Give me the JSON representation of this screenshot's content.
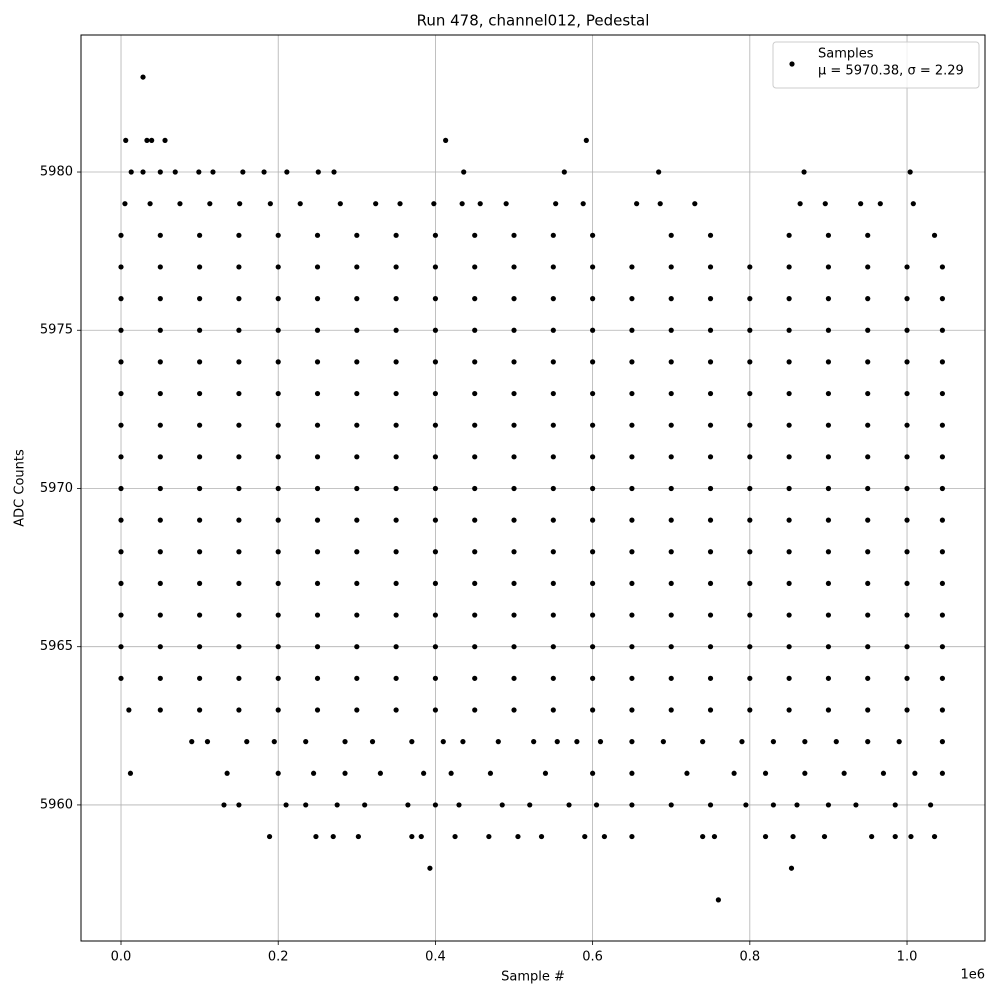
{
  "chart_data": {
    "type": "scatter",
    "title": "Run 478, channel012, Pedestal",
    "x_label": "Sample #",
    "y_label": "ADC Counts",
    "x_offset_label": "1e6",
    "xlim": [
      -50900,
      1099200
    ],
    "ylim": [
      5955.7,
      5984.33
    ],
    "xticks": [
      {
        "value": 0,
        "label": "0.0"
      },
      {
        "value": 200000,
        "label": "0.2"
      },
      {
        "value": 400000,
        "label": "0.4"
      },
      {
        "value": 600000,
        "label": "0.6"
      },
      {
        "value": 800000,
        "label": "0.8"
      },
      {
        "value": 1000000,
        "label": "1.0"
      }
    ],
    "yticks": [
      5960,
      5965,
      5970,
      5975,
      5980
    ],
    "grid": true,
    "legend_position": "upper right",
    "legend_subtitle": "μ = 5970.38, σ = 2.29",
    "series": [
      {
        "name": "Samples",
        "color": "#000000",
        "x": [
          28000,
          6000,
          33000,
          39000,
          56000,
          413000,
          592000,
          13000,
          28000,
          50000,
          69000,
          99000,
          117000,
          155000,
          182000,
          211000,
          251000,
          271000,
          436000,
          564000,
          684000,
          869000,
          1004000,
          5000,
          37000,
          75000,
          113000,
          151000,
          190000,
          228000,
          279000,
          324000,
          355000,
          398000,
          434000,
          457000,
          490000,
          553000,
          588000,
          656000,
          686000,
          730000,
          864000,
          896000,
          941000,
          966000,
          1008000,
          0,
          50000,
          100000,
          150000,
          200000,
          250000,
          300000,
          350000,
          400000,
          450000,
          500000,
          550000,
          600000,
          700000,
          750000,
          850000,
          900000,
          950000,
          1035000,
          0,
          50000,
          100000,
          150000,
          200000,
          250000,
          300000,
          350000,
          400000,
          450000,
          500000,
          550000,
          600000,
          650000,
          700000,
          750000,
          800000,
          850000,
          900000,
          950000,
          1000000,
          1045000,
          0,
          50000,
          100000,
          150000,
          200000,
          250000,
          300000,
          350000,
          400000,
          450000,
          500000,
          550000,
          600000,
          650000,
          700000,
          750000,
          800000,
          850000,
          900000,
          950000,
          1000000,
          1045000,
          0,
          50000,
          100000,
          150000,
          200000,
          250000,
          300000,
          350000,
          400000,
          450000,
          500000,
          550000,
          600000,
          650000,
          700000,
          750000,
          800000,
          850000,
          900000,
          950000,
          1000000,
          1045000,
          0,
          50000,
          100000,
          150000,
          200000,
          250000,
          300000,
          350000,
          400000,
          450000,
          500000,
          550000,
          600000,
          650000,
          700000,
          750000,
          800000,
          850000,
          900000,
          950000,
          1000000,
          1045000,
          0,
          50000,
          100000,
          150000,
          200000,
          250000,
          300000,
          350000,
          400000,
          450000,
          500000,
          550000,
          600000,
          650000,
          700000,
          750000,
          800000,
          850000,
          900000,
          950000,
          1000000,
          1045000,
          0,
          50000,
          100000,
          150000,
          200000,
          250000,
          300000,
          350000,
          400000,
          450000,
          500000,
          550000,
          600000,
          650000,
          700000,
          750000,
          800000,
          850000,
          900000,
          950000,
          1000000,
          1045000,
          0,
          50000,
          100000,
          150000,
          200000,
          250000,
          300000,
          350000,
          400000,
          450000,
          500000,
          550000,
          600000,
          650000,
          700000,
          750000,
          800000,
          850000,
          900000,
          950000,
          1000000,
          1045000,
          0,
          50000,
          100000,
          150000,
          200000,
          250000,
          300000,
          350000,
          400000,
          450000,
          500000,
          550000,
          600000,
          650000,
          700000,
          750000,
          800000,
          850000,
          900000,
          950000,
          1000000,
          1045000,
          0,
          50000,
          100000,
          150000,
          200000,
          250000,
          300000,
          350000,
          400000,
          450000,
          500000,
          550000,
          600000,
          650000,
          700000,
          750000,
          800000,
          850000,
          900000,
          950000,
          1000000,
          1045000,
          0,
          50000,
          100000,
          150000,
          200000,
          250000,
          300000,
          350000,
          400000,
          450000,
          500000,
          550000,
          600000,
          650000,
          700000,
          750000,
          800000,
          850000,
          900000,
          950000,
          1000000,
          1045000,
          0,
          50000,
          100000,
          150000,
          200000,
          250000,
          300000,
          350000,
          400000,
          450000,
          500000,
          550000,
          600000,
          650000,
          700000,
          750000,
          800000,
          850000,
          900000,
          950000,
          1000000,
          1045000,
          0,
          50000,
          100000,
          150000,
          200000,
          250000,
          300000,
          350000,
          400000,
          450000,
          500000,
          550000,
          600000,
          650000,
          700000,
          750000,
          800000,
          850000,
          900000,
          950000,
          1000000,
          1045000,
          0,
          50000,
          100000,
          150000,
          200000,
          250000,
          300000,
          350000,
          400000,
          450000,
          500000,
          550000,
          600000,
          650000,
          700000,
          750000,
          800000,
          850000,
          900000,
          950000,
          1000000,
          1045000,
          0,
          50000,
          100000,
          150000,
          200000,
          250000,
          300000,
          350000,
          400000,
          450000,
          500000,
          550000,
          600000,
          650000,
          700000,
          750000,
          800000,
          850000,
          900000,
          950000,
          1000000,
          1045000,
          10000,
          50000,
          100000,
          150000,
          200000,
          250000,
          300000,
          350000,
          400000,
          450000,
          500000,
          550000,
          600000,
          650000,
          700000,
          750000,
          800000,
          850000,
          900000,
          950000,
          1000000,
          1045000,
          90000,
          110000,
          160000,
          195000,
          235000,
          285000,
          320000,
          370000,
          410000,
          435000,
          480000,
          525000,
          555000,
          580000,
          610000,
          650000,
          690000,
          740000,
          790000,
          830000,
          870000,
          910000,
          950000,
          990000,
          1045000,
          12000,
          135000,
          200000,
          245000,
          285000,
          330000,
          385000,
          420000,
          470000,
          540000,
          600000,
          650000,
          720000,
          780000,
          820000,
          870000,
          920000,
          970000,
          1010000,
          1045000,
          131000,
          150000,
          210000,
          235000,
          275000,
          310000,
          365000,
          400000,
          430000,
          485000,
          520000,
          570000,
          605000,
          650000,
          700000,
          750000,
          795000,
          830000,
          860000,
          900000,
          935000,
          985000,
          1030000,
          189000,
          248000,
          270000,
          302000,
          370000,
          382000,
          425000,
          468000,
          505000,
          535000,
          590000,
          615000,
          650000,
          740000,
          755000,
          820000,
          855000,
          895000,
          955000,
          985000,
          1005000,
          1035000,
          393000,
          853000,
          760000
        ],
        "values": [
          5983,
          5981,
          5981,
          5981,
          5981,
          5981,
          5981,
          5980,
          5980,
          5980,
          5980,
          5980,
          5980,
          5980,
          5980,
          5980,
          5980,
          5980,
          5980,
          5980,
          5980,
          5980,
          5980,
          5979,
          5979,
          5979,
          5979,
          5979,
          5979,
          5979,
          5979,
          5979,
          5979,
          5979,
          5979,
          5979,
          5979,
          5979,
          5979,
          5979,
          5979,
          5979,
          5979,
          5979,
          5979,
          5979,
          5979,
          5978,
          5978,
          5978,
          5978,
          5978,
          5978,
          5978,
          5978,
          5978,
          5978,
          5978,
          5978,
          5978,
          5978,
          5978,
          5978,
          5978,
          5978,
          5978,
          5977,
          5977,
          5977,
          5977,
          5977,
          5977,
          5977,
          5977,
          5977,
          5977,
          5977,
          5977,
          5977,
          5977,
          5977,
          5977,
          5977,
          5977,
          5977,
          5977,
          5977,
          5977,
          5976,
          5976,
          5976,
          5976,
          5976,
          5976,
          5976,
          5976,
          5976,
          5976,
          5976,
          5976,
          5976,
          5976,
          5976,
          5976,
          5976,
          5976,
          5976,
          5976,
          5976,
          5976,
          5975,
          5975,
          5975,
          5975,
          5975,
          5975,
          5975,
          5975,
          5975,
          5975,
          5975,
          5975,
          5975,
          5975,
          5975,
          5975,
          5975,
          5975,
          5975,
          5975,
          5975,
          5975,
          5974,
          5974,
          5974,
          5974,
          5974,
          5974,
          5974,
          5974,
          5974,
          5974,
          5974,
          5974,
          5974,
          5974,
          5974,
          5974,
          5974,
          5974,
          5974,
          5974,
          5974,
          5974,
          5973,
          5973,
          5973,
          5973,
          5973,
          5973,
          5973,
          5973,
          5973,
          5973,
          5973,
          5973,
          5973,
          5973,
          5973,
          5973,
          5973,
          5973,
          5973,
          5973,
          5973,
          5973,
          5972,
          5972,
          5972,
          5972,
          5972,
          5972,
          5972,
          5972,
          5972,
          5972,
          5972,
          5972,
          5972,
          5972,
          5972,
          5972,
          5972,
          5972,
          5972,
          5972,
          5972,
          5972,
          5971,
          5971,
          5971,
          5971,
          5971,
          5971,
          5971,
          5971,
          5971,
          5971,
          5971,
          5971,
          5971,
          5971,
          5971,
          5971,
          5971,
          5971,
          5971,
          5971,
          5971,
          5971,
          5970,
          5970,
          5970,
          5970,
          5970,
          5970,
          5970,
          5970,
          5970,
          5970,
          5970,
          5970,
          5970,
          5970,
          5970,
          5970,
          5970,
          5970,
          5970,
          5970,
          5970,
          5970,
          5969,
          5969,
          5969,
          5969,
          5969,
          5969,
          5969,
          5969,
          5969,
          5969,
          5969,
          5969,
          5969,
          5969,
          5969,
          5969,
          5969,
          5969,
          5969,
          5969,
          5969,
          5969,
          5968,
          5968,
          5968,
          5968,
          5968,
          5968,
          5968,
          5968,
          5968,
          5968,
          5968,
          5968,
          5968,
          5968,
          5968,
          5968,
          5968,
          5968,
          5968,
          5968,
          5968,
          5968,
          5967,
          5967,
          5967,
          5967,
          5967,
          5967,
          5967,
          5967,
          5967,
          5967,
          5967,
          5967,
          5967,
          5967,
          5967,
          5967,
          5967,
          5967,
          5967,
          5967,
          5967,
          5967,
          5966,
          5966,
          5966,
          5966,
          5966,
          5966,
          5966,
          5966,
          5966,
          5966,
          5966,
          5966,
          5966,
          5966,
          5966,
          5966,
          5966,
          5966,
          5966,
          5966,
          5966,
          5966,
          5965,
          5965,
          5965,
          5965,
          5965,
          5965,
          5965,
          5965,
          5965,
          5965,
          5965,
          5965,
          5965,
          5965,
          5965,
          5965,
          5965,
          5965,
          5965,
          5965,
          5965,
          5965,
          5964,
          5964,
          5964,
          5964,
          5964,
          5964,
          5964,
          5964,
          5964,
          5964,
          5964,
          5964,
          5964,
          5964,
          5964,
          5964,
          5964,
          5964,
          5964,
          5964,
          5964,
          5964,
          5963,
          5963,
          5963,
          5963,
          5963,
          5963,
          5963,
          5963,
          5963,
          5963,
          5963,
          5963,
          5963,
          5963,
          5963,
          5963,
          5963,
          5963,
          5963,
          5963,
          5963,
          5963,
          5962,
          5962,
          5962,
          5962,
          5962,
          5962,
          5962,
          5962,
          5962,
          5962,
          5962,
          5962,
          5962,
          5962,
          5962,
          5962,
          5962,
          5962,
          5962,
          5962,
          5962,
          5962,
          5962,
          5962,
          5962,
          5961,
          5961,
          5961,
          5961,
          5961,
          5961,
          5961,
          5961,
          5961,
          5961,
          5961,
          5961,
          5961,
          5961,
          5961,
          5961,
          5961,
          5961,
          5961,
          5961,
          5960,
          5960,
          5960,
          5960,
          5960,
          5960,
          5960,
          5960,
          5960,
          5960,
          5960,
          5960,
          5960,
          5960,
          5960,
          5960,
          5960,
          5960,
          5960,
          5960,
          5960,
          5960,
          5960,
          5959,
          5959,
          5959,
          5959,
          5959,
          5959,
          5959,
          5959,
          5959,
          5959,
          5959,
          5959,
          5959,
          5959,
          5959,
          5959,
          5959,
          5959,
          5959,
          5959,
          5959,
          5959,
          5958,
          5958,
          5957
        ]
      }
    ]
  }
}
